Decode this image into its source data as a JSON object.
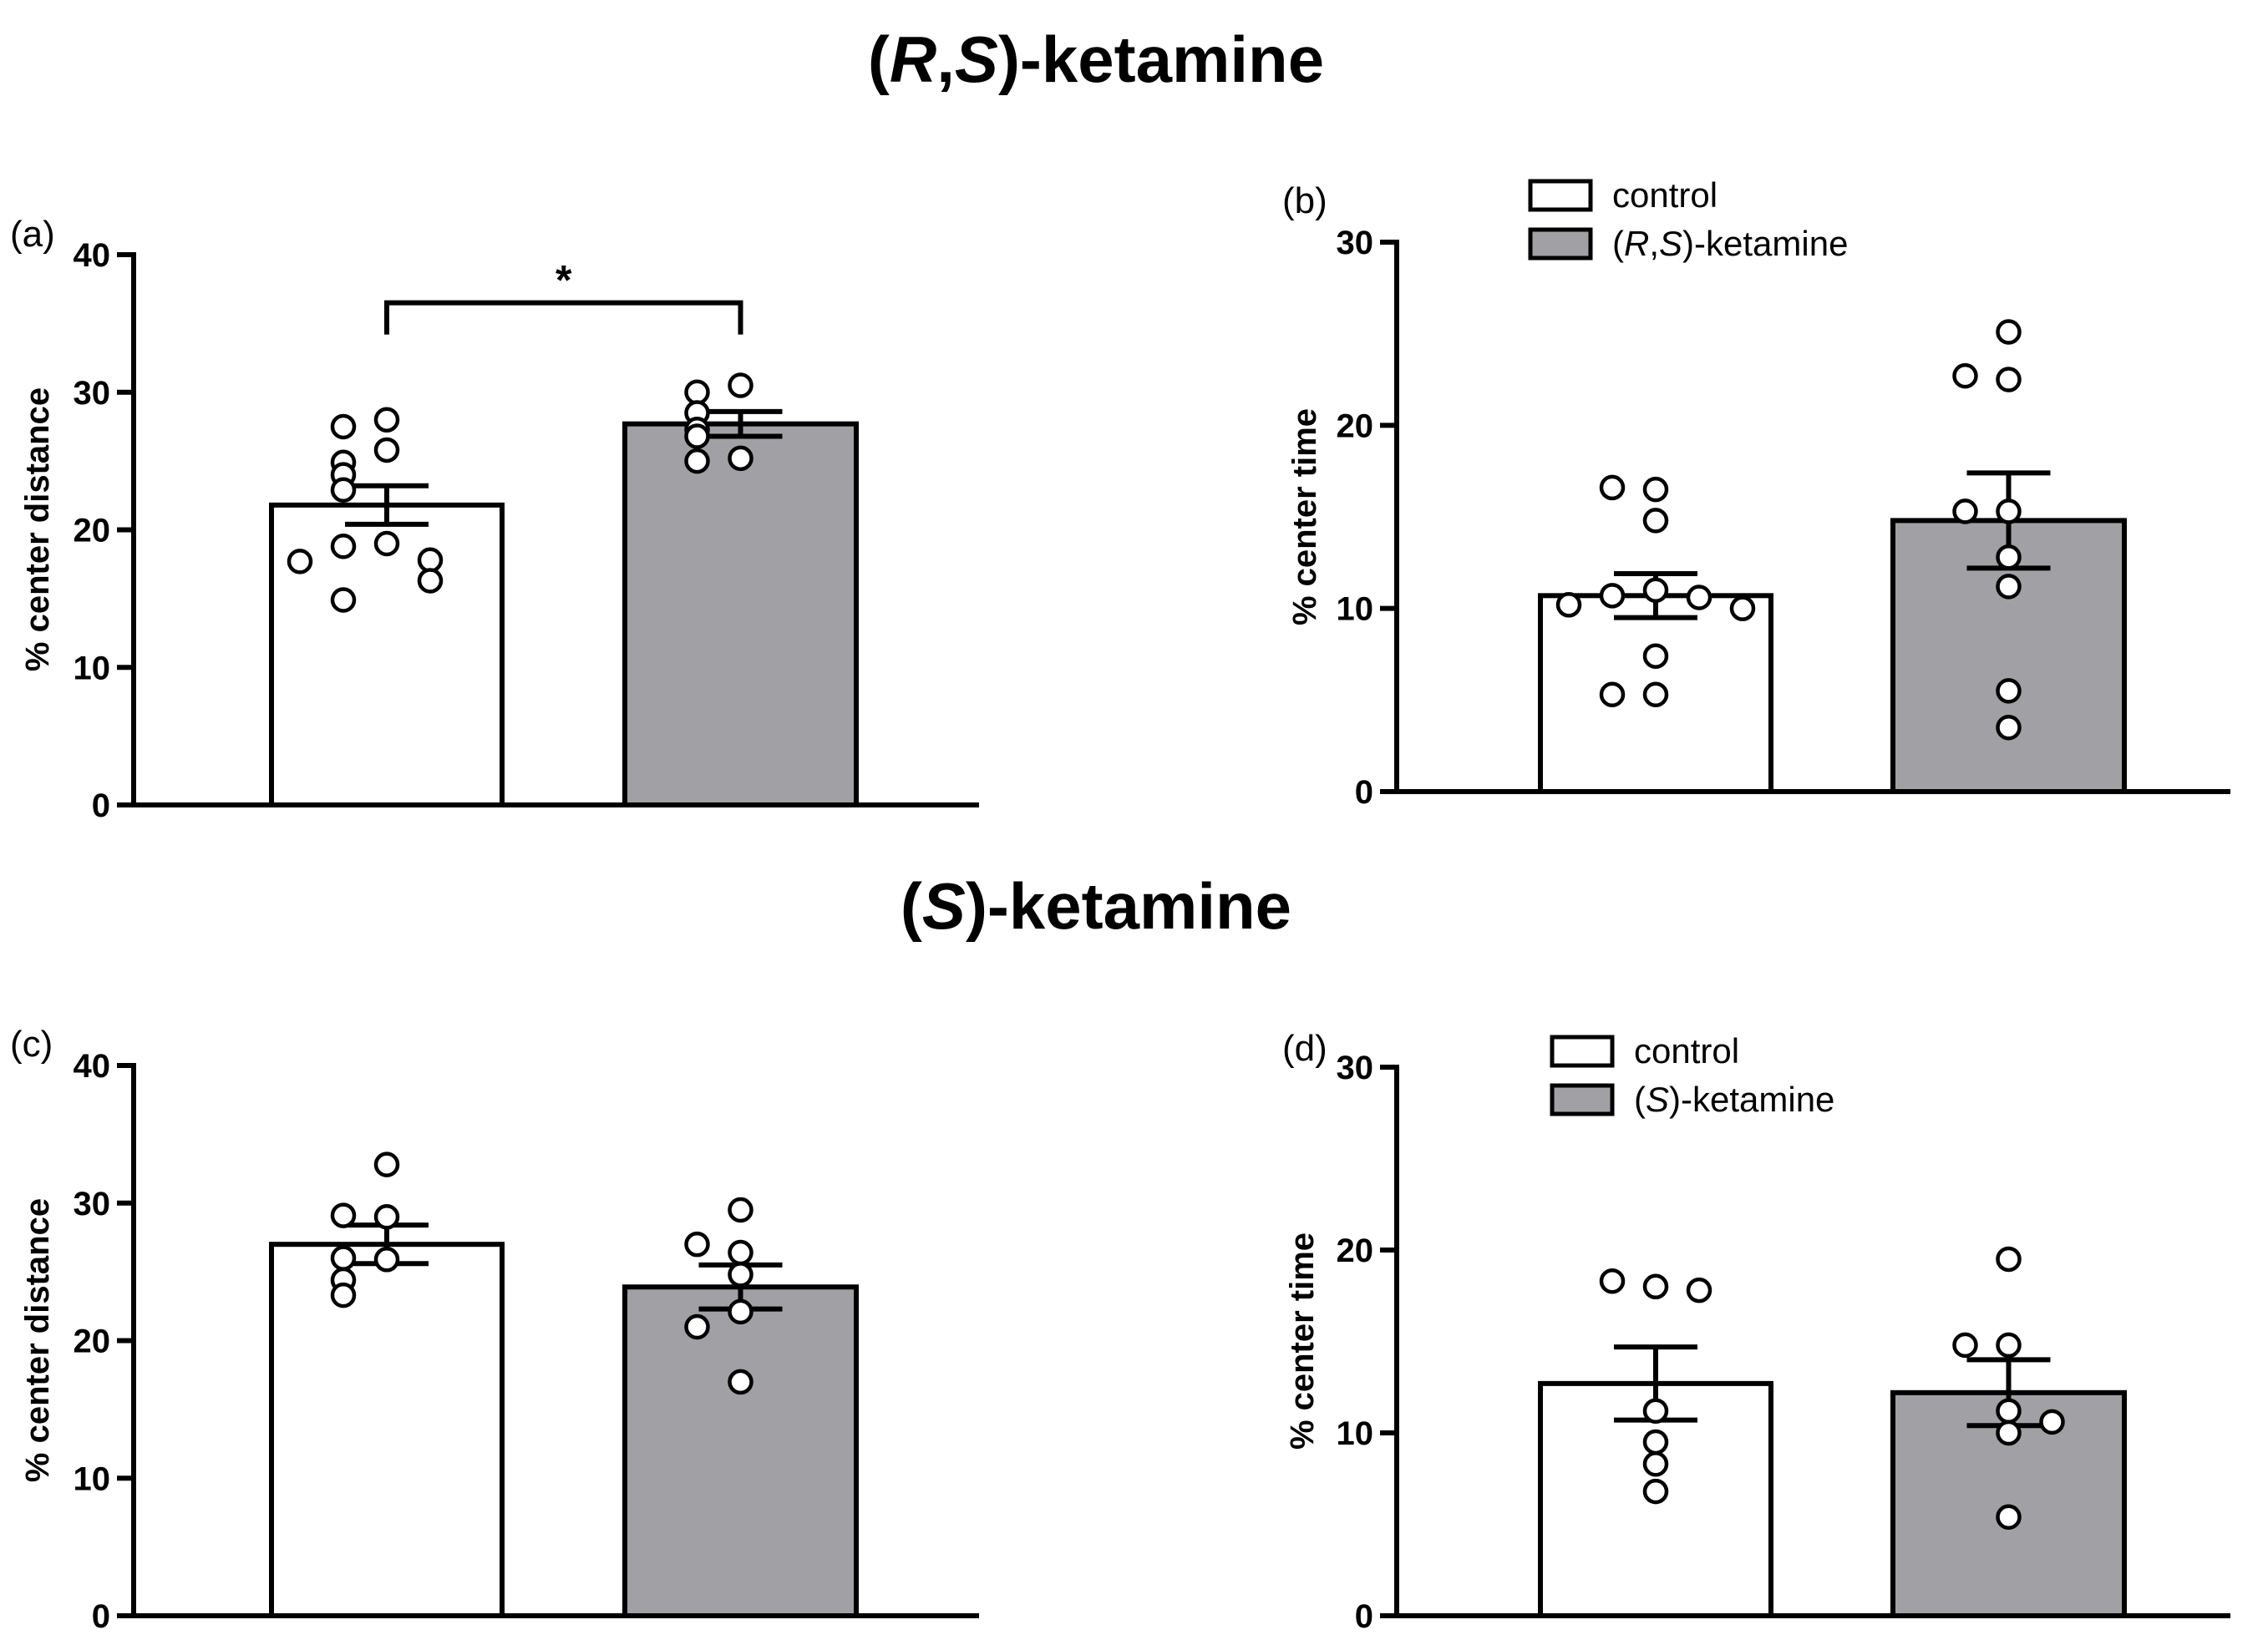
{
  "titles": {
    "top": {
      "pre": "(",
      "i1": "R",
      "mid": ",",
      "i2": "S",
      "post": ")-ketamine"
    },
    "bottom": {
      "pre": "(",
      "i1": "S",
      "post": ")-ketamine"
    }
  },
  "chart_data": [
    {
      "id": "a",
      "type": "bar",
      "panel_label": "(a)",
      "ylabel": "% center distance",
      "ylim": [
        0,
        40
      ],
      "yticks": [
        0,
        10,
        20,
        30,
        40
      ],
      "categories": [
        "control",
        "(R,S)-ketamine"
      ],
      "series": [
        {
          "name": "mean",
          "values": [
            21.8,
            27.7
          ]
        }
      ],
      "sem": [
        1.4,
        0.9
      ],
      "colors": [
        "#ffffff",
        "#a0a0a5"
      ],
      "points": [
        [
          28.0,
          27.5,
          25.8,
          24.9,
          24.0,
          22.9,
          19.0,
          18.8,
          17.8,
          17.7,
          16.3,
          14.9
        ],
        [
          30.5,
          30.0,
          28.5,
          27.3,
          26.8,
          25.2,
          25.0
        ]
      ],
      "significance": {
        "text": "*",
        "between": [
          0,
          1
        ],
        "y": 36.5
      }
    },
    {
      "id": "b",
      "type": "bar",
      "panel_label": "(b)",
      "ylabel": "% center time",
      "ylim": [
        0,
        30
      ],
      "yticks": [
        0,
        10,
        20,
        30
      ],
      "categories": [
        "control",
        "(R,S)-ketamine"
      ],
      "series": [
        {
          "name": "mean",
          "values": [
            10.7,
            14.8
          ]
        }
      ],
      "sem": [
        1.2,
        2.6
      ],
      "colors": [
        "#ffffff",
        "#a0a0a5"
      ],
      "points": [
        [
          16.5,
          16.6,
          14.8,
          11.0,
          10.7,
          10.6,
          10.2,
          10.0,
          7.4,
          5.3,
          5.3
        ],
        [
          25.1,
          22.5,
          22.7,
          15.3,
          15.3,
          12.8,
          11.2,
          5.5,
          3.5
        ]
      ],
      "legend": {
        "position": "top-center",
        "entries": [
          {
            "label": "control",
            "color": "#ffffff"
          },
          {
            "label_pre": "(",
            "label_i1": "R",
            "label_mid": ",",
            "label_i2": "S",
            "label_post": ")-ketamine",
            "color": "#a0a0a5"
          }
        ]
      }
    },
    {
      "id": "c",
      "type": "bar",
      "panel_label": "(c)",
      "ylabel": "% center distance",
      "ylim": [
        0,
        40
      ],
      "yticks": [
        0,
        10,
        20,
        30,
        40
      ],
      "categories": [
        "control",
        "(S)-ketamine"
      ],
      "series": [
        {
          "name": "mean",
          "values": [
            27.0,
            23.9
          ]
        }
      ],
      "sem": [
        1.4,
        1.6
      ],
      "colors": [
        "#ffffff",
        "#a0a0a5"
      ],
      "points": [
        [
          32.8,
          29.0,
          29.1,
          25.9,
          26.0,
          24.4,
          23.3
        ],
        [
          29.5,
          26.4,
          27.0,
          24.8,
          22.1,
          21.0,
          17.0
        ]
      ]
    },
    {
      "id": "d",
      "type": "bar",
      "panel_label": "(d)",
      "ylabel": "% center time",
      "ylim": [
        0,
        30
      ],
      "yticks": [
        0,
        10,
        20,
        30
      ],
      "categories": [
        "control",
        "(S)-ketamine"
      ],
      "series": [
        {
          "name": "mean",
          "values": [
            12.7,
            12.2
          ]
        }
      ],
      "sem": [
        2.0,
        1.8
      ],
      "colors": [
        "#ffffff",
        "#a0a0a5"
      ],
      "points": [
        [
          18.0,
          18.3,
          17.8,
          11.2,
          9.5,
          8.3,
          6.8
        ],
        [
          19.5,
          14.8,
          14.8,
          11.2,
          10.0,
          10.6,
          5.4
        ]
      ],
      "legend": {
        "position": "top-center",
        "entries": [
          {
            "label": "control",
            "color": "#ffffff"
          },
          {
            "label_pre": "(",
            "label_i1": "S",
            "label_post": ")-ketamine",
            "color": "#a0a0a5"
          }
        ]
      }
    }
  ]
}
